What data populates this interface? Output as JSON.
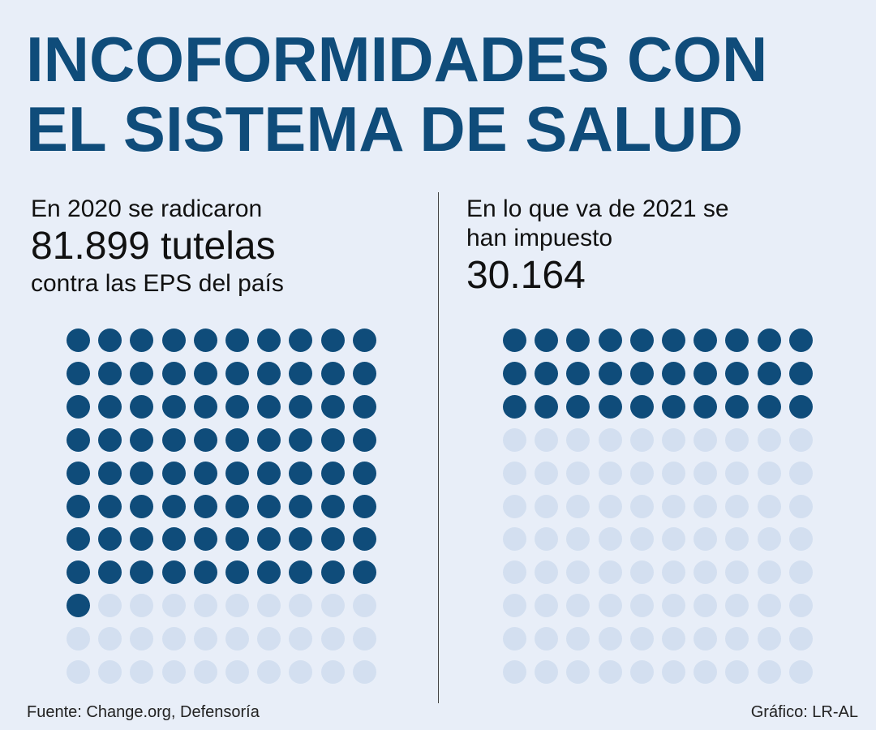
{
  "title": {
    "line1": "INCOFORMIDADES CON",
    "line2": "EL SISTEMA DE SALUD"
  },
  "left": {
    "line1": "En 2020 se radicaron",
    "number": "81.899 tutelas",
    "line3": "contra las EPS del país"
  },
  "right": {
    "line1": "En lo que va de 2021 se",
    "line2": "han impuesto",
    "number": "30.164"
  },
  "footer": {
    "source": "Fuente: Change.org, Defensoría",
    "credit": "Gráfico: LR-AL"
  },
  "colors": {
    "background": "#e8eef8",
    "filled_dot": "#0f4c7a",
    "empty_dot": "#d3dff0",
    "title": "#0f4c7a"
  },
  "chart_data": [
    {
      "type": "waffle",
      "grid": {
        "rows": 11,
        "cols": 10
      },
      "filled": 81
    },
    {
      "type": "waffle",
      "grid": {
        "rows": 11,
        "cols": 10
      },
      "filled": 30
    }
  ]
}
